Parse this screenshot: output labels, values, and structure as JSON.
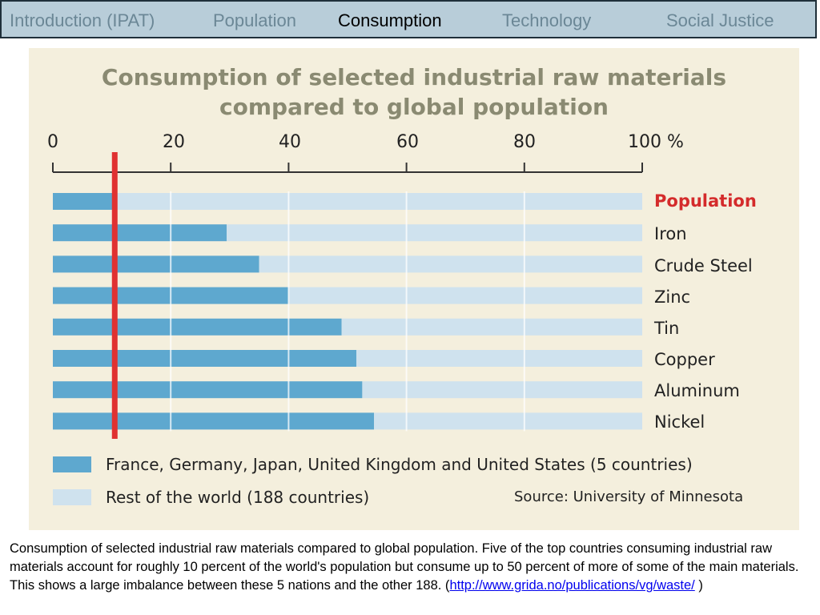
{
  "nav": {
    "tabs": [
      {
        "label": "Introduction (IPAT)",
        "active": false
      },
      {
        "label": "Population",
        "active": false
      },
      {
        "label": "Consumption",
        "active": true
      },
      {
        "label": "Technology",
        "active": false
      },
      {
        "label": "Social Justice",
        "active": false
      }
    ]
  },
  "colors": {
    "nav_background": "#b8cdd9",
    "figure_background": "#f4efdd",
    "five_countries": "#5ea8cf",
    "rest_of_world": "#cfe2ee",
    "population_marker": "#e03131"
  },
  "chart_data": {
    "type": "bar",
    "orientation": "horizontal",
    "stacked_to_100": true,
    "title": "Consumption of selected industrial raw materials compared to global population",
    "title_lines": [
      "Consumption of selected industrial raw materials",
      "compared to global population"
    ],
    "tick_labels": [
      "0",
      "20",
      "40",
      "60",
      "80",
      "100 %"
    ],
    "xlim": [
      0,
      100
    ],
    "categories": [
      "Population",
      "Iron",
      "Crude Steel",
      "Zinc",
      "Tin",
      "Copper",
      "Aluminum",
      "Nickel"
    ],
    "series": [
      {
        "name": "France, Germany, Japan, United Kingdom and United States (5 countries)",
        "values": [
          10.5,
          29.5,
          35,
          40,
          49,
          51.5,
          52.5,
          54.5
        ]
      },
      {
        "name": "Rest of the world (188 countries)",
        "values": [
          89.5,
          70.5,
          65,
          60,
          51,
          48.5,
          47.5,
          45.5
        ]
      }
    ],
    "reference_line": {
      "value": 10.5
    },
    "highlighted_category": "Population",
    "grid": true,
    "legend_position": "bottom",
    "source": "Source: University of Minnesota"
  },
  "caption": {
    "text": "Consumption of selected industrial raw materials compared to global population. Five of the top countries consuming industrial raw materials account for roughly 10 percent of the world's population but consume up to 50 percent of more of some of the main materials. This shows a large imbalance between these 5 nations and the other 188. (",
    "link_text": "http://www.grida.no/publications/vg/waste/",
    "suffix": " )"
  }
}
